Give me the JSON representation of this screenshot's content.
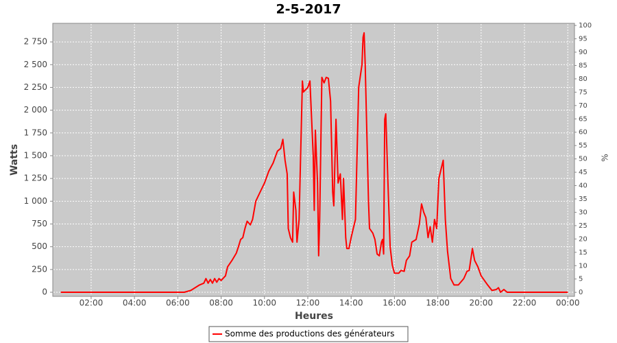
{
  "chart_data": {
    "type": "line",
    "title": "2-5-2017",
    "x_label": "Heures",
    "y_label": "Watts",
    "y2_label": "%",
    "x": [
      0.6,
      6.3,
      6.6,
      7.0,
      7.2,
      7.3,
      7.4,
      7.5,
      7.6,
      7.7,
      7.8,
      7.9,
      8.0,
      8.2,
      8.3,
      8.5,
      8.7,
      8.8,
      8.9,
      9.0,
      9.1,
      9.2,
      9.35,
      9.45,
      9.6,
      9.8,
      10.0,
      10.2,
      10.4,
      10.6,
      10.75,
      10.85,
      10.95,
      11.05,
      11.1,
      11.2,
      11.3,
      11.35,
      11.45,
      11.5,
      11.6,
      11.75,
      11.8,
      12.0,
      12.1,
      12.25,
      12.3,
      12.35,
      12.45,
      12.5,
      12.55,
      12.65,
      12.75,
      12.85,
      12.95,
      13.05,
      13.15,
      13.2,
      13.3,
      13.4,
      13.5,
      13.6,
      13.65,
      13.75,
      13.8,
      13.9,
      14.0,
      14.1,
      14.2,
      14.35,
      14.5,
      14.55,
      14.6,
      14.65,
      14.75,
      14.8,
      14.85,
      15.0,
      15.1,
      15.2,
      15.3,
      15.4,
      15.45,
      15.5,
      15.55,
      15.6,
      15.7,
      15.8,
      15.9,
      16.0,
      16.2,
      16.3,
      16.45,
      16.55,
      16.7,
      16.8,
      17.0,
      17.15,
      17.25,
      17.35,
      17.45,
      17.55,
      17.65,
      17.75,
      17.85,
      17.95,
      18.05,
      18.15,
      18.25,
      18.35,
      18.45,
      18.6,
      18.75,
      18.95,
      19.2,
      19.35,
      19.45,
      19.6,
      19.7,
      19.85,
      20.0,
      20.3,
      20.5,
      20.7,
      20.8,
      20.9,
      21.05,
      21.2,
      24.0
    ],
    "series": [
      {
        "name": "Somme des productions des  générateurs",
        "color": "#ff0000",
        "values": [
          0,
          0,
          20,
          80,
          100,
          150,
          100,
          140,
          100,
          150,
          110,
          150,
          130,
          180,
          280,
          350,
          430,
          500,
          580,
          600,
          700,
          780,
          740,
          800,
          1000,
          1100,
          1200,
          1330,
          1420,
          1550,
          1580,
          1680,
          1450,
          1300,
          700,
          600,
          550,
          1100,
          900,
          550,
          800,
          2320,
          2200,
          2250,
          2320,
          1500,
          900,
          1780,
          1200,
          400,
          800,
          2360,
          2300,
          2360,
          2350,
          2100,
          1100,
          950,
          1900,
          1200,
          1300,
          800,
          1250,
          600,
          480,
          480,
          600,
          700,
          800,
          2250,
          2500,
          2800,
          2850,
          2500,
          1500,
          1000,
          700,
          650,
          580,
          420,
          400,
          550,
          580,
          420,
          1900,
          1960,
          1200,
          500,
          300,
          210,
          210,
          240,
          230,
          350,
          400,
          550,
          580,
          750,
          970,
          880,
          820,
          600,
          720,
          550,
          800,
          700,
          1250,
          1350,
          1450,
          800,
          450,
          150,
          80,
          80,
          150,
          230,
          240,
          480,
          350,
          280,
          180,
          80,
          20,
          30,
          50,
          0,
          30,
          0,
          0
        ]
      }
    ],
    "xlim": [
      0.23,
      24.31
    ],
    "xticks": [
      {
        "value": 2,
        "label": "02:00"
      },
      {
        "value": 4,
        "label": "04:00"
      },
      {
        "value": 6,
        "label": "06:00"
      },
      {
        "value": 8,
        "label": "08:00"
      },
      {
        "value": 10,
        "label": "10:00"
      },
      {
        "value": 12,
        "label": "12:00"
      },
      {
        "value": 14,
        "label": "14:00"
      },
      {
        "value": 16,
        "label": "16:00"
      },
      {
        "value": 18,
        "label": "18:00"
      },
      {
        "value": 20,
        "label": "20:00"
      },
      {
        "value": 22,
        "label": "22:00"
      },
      {
        "value": 24,
        "label": "00:00"
      }
    ],
    "ylim": [
      -45,
      2954
    ],
    "yticks": [
      0,
      250,
      500,
      750,
      {
        "value": 1000,
        "label": "1 000"
      },
      {
        "value": 1250,
        "label": "1 250"
      },
      {
        "value": 1500,
        "label": "1 500"
      },
      {
        "value": 1750,
        "label": "1 750"
      },
      {
        "value": 2000,
        "label": "2 000"
      },
      {
        "value": 2250,
        "label": "2 250"
      },
      {
        "value": 2500,
        "label": "2 500"
      },
      {
        "value": 2750,
        "label": "2 750"
      }
    ],
    "y2lim": [
      -1.5,
      100.8
    ],
    "y2ticks": [
      0,
      5,
      10,
      15,
      20,
      25,
      30,
      35,
      40,
      45,
      50,
      55,
      60,
      65,
      70,
      75,
      80,
      85,
      90,
      95,
      100
    ],
    "grid": true
  }
}
